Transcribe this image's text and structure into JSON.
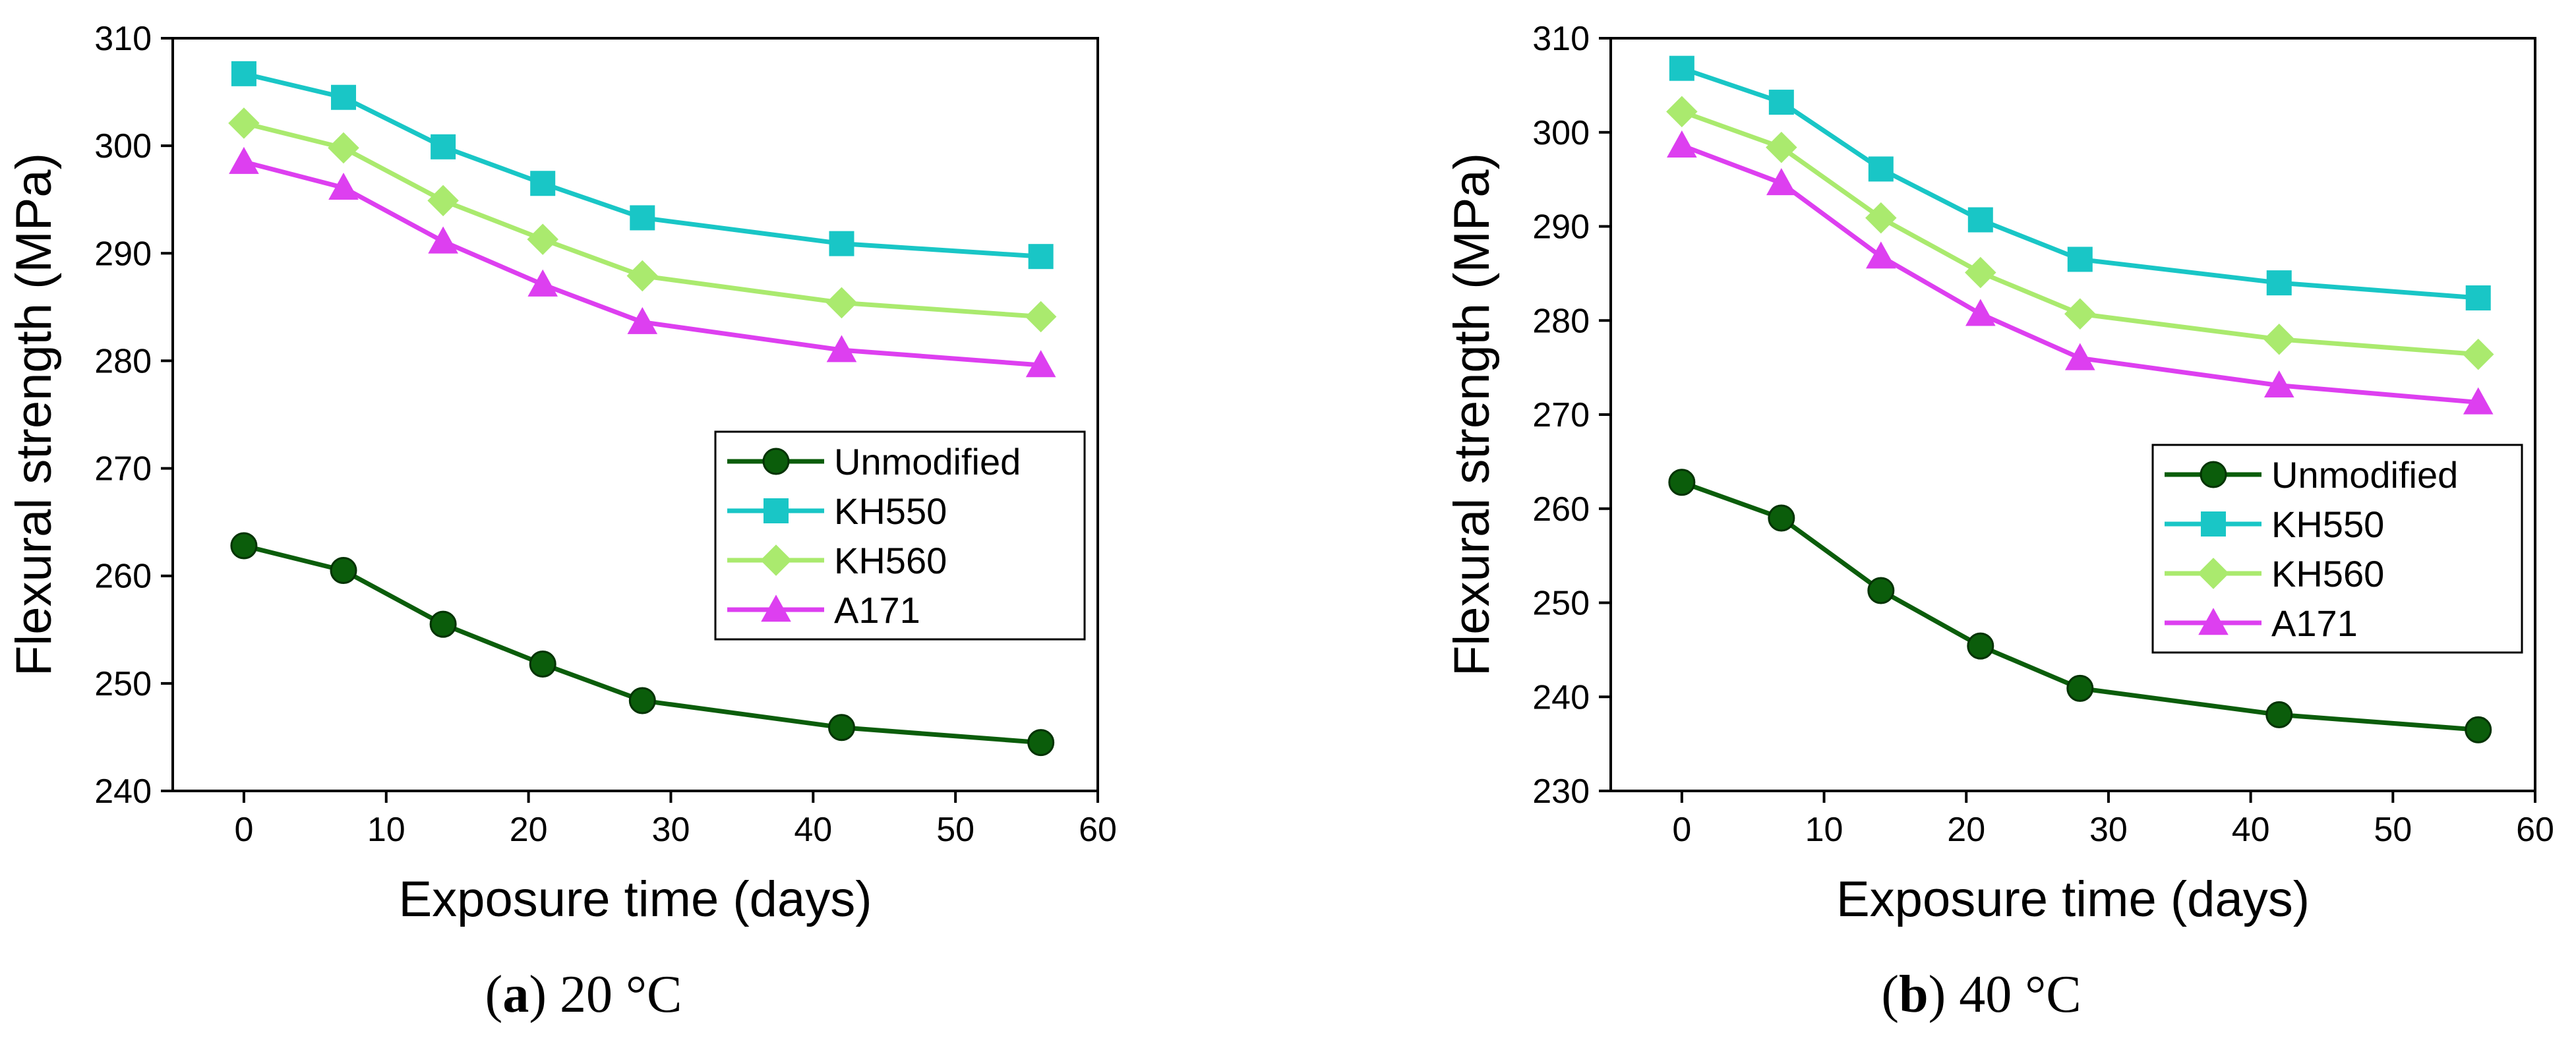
{
  "chart_data": [
    {
      "type": "line",
      "panel_label": "a",
      "caption_text": "20 °C",
      "xlabel": "Exposure time (days)",
      "ylabel": "Flexural strength (MPa)",
      "xlim": [
        -5,
        60
      ],
      "ylim": [
        240,
        310
      ],
      "xticks": [
        0,
        10,
        20,
        30,
        40,
        50,
        60
      ],
      "yticks": [
        240,
        250,
        260,
        270,
        280,
        290,
        300,
        310
      ],
      "x": [
        0,
        7,
        14,
        21,
        28,
        42,
        56
      ],
      "legend_position": "center-right",
      "series": [
        {
          "name": "Unmodified",
          "color": "#0b5d0b",
          "marker": "circle",
          "values": [
            262.8,
            260.5,
            255.5,
            251.8,
            248.4,
            245.9,
            244.5
          ]
        },
        {
          "name": "KH550",
          "color": "#19c6c6",
          "marker": "square",
          "values": [
            306.7,
            304.5,
            299.9,
            296.5,
            293.3,
            290.9,
            289.7
          ]
        },
        {
          "name": "KH560",
          "color": "#aaea6e",
          "marker": "diamond",
          "values": [
            302.1,
            299.8,
            294.9,
            291.3,
            287.9,
            285.4,
            284.1
          ]
        },
        {
          "name": "A171",
          "color": "#dd3ff0",
          "marker": "triangle",
          "values": [
            298.5,
            296.1,
            291.1,
            287.1,
            283.6,
            281.0,
            279.6
          ]
        }
      ]
    },
    {
      "type": "line",
      "panel_label": "b",
      "caption_text": "40 °C",
      "xlabel": "Exposure time (days)",
      "ylabel": "Flexural strength (MPa)",
      "xlim": [
        -5,
        60
      ],
      "ylim": [
        230,
        310
      ],
      "xticks": [
        0,
        10,
        20,
        30,
        40,
        50,
        60
      ],
      "yticks": [
        230,
        240,
        250,
        260,
        270,
        280,
        290,
        300,
        310
      ],
      "x": [
        0,
        7,
        14,
        21,
        28,
        42,
        56
      ],
      "legend_position": "center-right",
      "series": [
        {
          "name": "Unmodified",
          "color": "#0b5d0b",
          "marker": "circle",
          "values": [
            262.8,
            259.0,
            251.3,
            245.4,
            240.9,
            238.1,
            236.5
          ]
        },
        {
          "name": "KH550",
          "color": "#19c6c6",
          "marker": "square",
          "values": [
            306.8,
            303.2,
            296.1,
            290.7,
            286.5,
            284.0,
            282.4
          ]
        },
        {
          "name": "KH560",
          "color": "#aaea6e",
          "marker": "diamond",
          "values": [
            302.2,
            298.4,
            290.9,
            285.1,
            280.7,
            278.0,
            276.4
          ]
        },
        {
          "name": "A171",
          "color": "#dd3ff0",
          "marker": "triangle",
          "values": [
            298.6,
            294.6,
            286.8,
            280.7,
            276.0,
            273.1,
            271.3
          ]
        }
      ]
    }
  ]
}
